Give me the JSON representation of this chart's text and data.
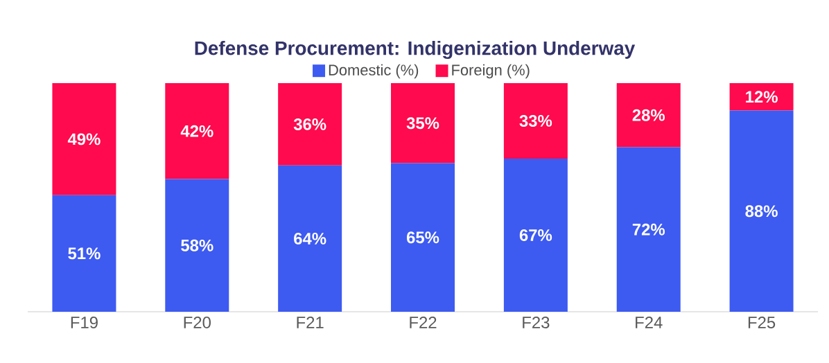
{
  "chart_data": {
    "type": "bar",
    "stacked": true,
    "title": "Defense Procurement: Indigenization Underway",
    "legend": "top",
    "categories": [
      "F19",
      "F20",
      "F21",
      "F22",
      "F23",
      "F24",
      "F25"
    ],
    "series": [
      {
        "name": "Domestic (%)",
        "color": "#3d5af1",
        "values": [
          51,
          58,
          64,
          65,
          67,
          72,
          88
        ],
        "value_labels": [
          "51%",
          "58%",
          "64%",
          "65%",
          "67%",
          "72%",
          "88%"
        ]
      },
      {
        "name": "Foreign (%)",
        "color": "#ff0a4e",
        "values": [
          49,
          42,
          36,
          35,
          33,
          28,
          12
        ],
        "value_labels": [
          "49%",
          "42%",
          "36%",
          "35%",
          "33%",
          "28%",
          "12%"
        ]
      }
    ]
  }
}
